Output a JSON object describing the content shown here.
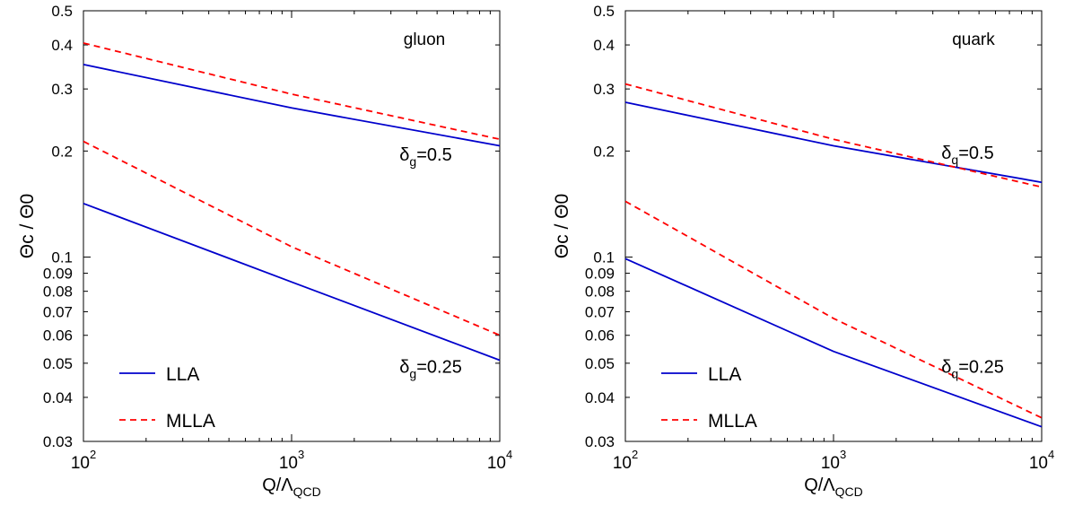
{
  "chart_data": [
    {
      "type": "line",
      "xscale": "log",
      "yscale": "log",
      "xlim": [
        100,
        10000
      ],
      "ylim": [
        0.03,
        0.5
      ],
      "xlabel": "Q/Λ",
      "xlabel_sub": "QCD",
      "ylabel": "Θc / Θ0",
      "xticks": [
        {
          "value": 100,
          "base": "10",
          "exp": "2"
        },
        {
          "value": 1000,
          "base": "10",
          "exp": "3"
        },
        {
          "value": 10000,
          "base": "10",
          "exp": "4"
        }
      ],
      "yticks": [
        0.03,
        0.04,
        0.05,
        0.06,
        0.07,
        0.08,
        0.09,
        0.1,
        0.2,
        0.3,
        0.4,
        0.5
      ],
      "ytick_labels": [
        "0.03",
        "0.04",
        "0.05",
        "0.06",
        "0.07",
        "0.08",
        "0.09",
        "0.1",
        "0.2",
        "0.3",
        "0.4",
        "0.5"
      ],
      "corner_label": "gluon",
      "annotations": [
        {
          "base": "δ",
          "sub": "g",
          "text": "=0.5",
          "x": 3300,
          "y": 0.188
        },
        {
          "base": "δ",
          "sub": "g",
          "text": "=0.25",
          "x": 3300,
          "y": 0.047
        }
      ],
      "legend": {
        "position": "bottom-left",
        "entries": [
          {
            "name": "LLA",
            "color": "#0000cc",
            "dash": "solid"
          },
          {
            "name": "MLLA",
            "color": "#ff0000",
            "dash": "dashed"
          }
        ]
      },
      "series": [
        {
          "color": "#0000cc",
          "dash": "solid",
          "x": [
            100,
            1000,
            10000
          ],
          "y": [
            0.352,
            0.265,
            0.207
          ]
        },
        {
          "color": "#ff0000",
          "dash": "dashed",
          "x": [
            100,
            1000,
            10000
          ],
          "y": [
            0.405,
            0.29,
            0.216
          ]
        },
        {
          "color": "#0000cc",
          "dash": "solid",
          "x": [
            100,
            1000,
            10000
          ],
          "y": [
            0.142,
            0.085,
            0.051
          ]
        },
        {
          "color": "#ff0000",
          "dash": "dashed",
          "x": [
            100,
            1000,
            10000
          ],
          "y": [
            0.213,
            0.107,
            0.06
          ]
        }
      ]
    },
    {
      "type": "line",
      "xscale": "log",
      "yscale": "log",
      "xlim": [
        100,
        10000
      ],
      "ylim": [
        0.03,
        0.5
      ],
      "xlabel": "Q/Λ",
      "xlabel_sub": "QCD",
      "ylabel": "Θc / Θ0",
      "xticks": [
        {
          "value": 100,
          "base": "10",
          "exp": "2"
        },
        {
          "value": 1000,
          "base": "10",
          "exp": "3"
        },
        {
          "value": 10000,
          "base": "10",
          "exp": "4"
        }
      ],
      "yticks": [
        0.03,
        0.04,
        0.05,
        0.06,
        0.07,
        0.08,
        0.09,
        0.1,
        0.2,
        0.3,
        0.4,
        0.5
      ],
      "ytick_labels": [
        "0.03",
        "0.04",
        "0.05",
        "0.06",
        "0.07",
        "0.08",
        "0.09",
        "0.1",
        "0.2",
        "0.3",
        "0.4",
        "0.5"
      ],
      "corner_label": "quark",
      "annotations": [
        {
          "base": "δ",
          "sub": "q",
          "text": "=0.5",
          "x": 3300,
          "y": 0.19
        },
        {
          "base": "δ",
          "sub": "q",
          "text": "=0.25",
          "x": 3300,
          "y": 0.047
        }
      ],
      "legend": {
        "position": "bottom-left",
        "entries": [
          {
            "name": "LLA",
            "color": "#0000cc",
            "dash": "solid"
          },
          {
            "name": "MLLA",
            "color": "#ff0000",
            "dash": "dashed"
          }
        ]
      },
      "series": [
        {
          "color": "#0000cc",
          "dash": "solid",
          "x": [
            100,
            1000,
            10000
          ],
          "y": [
            0.275,
            0.207,
            0.163
          ]
        },
        {
          "color": "#ff0000",
          "dash": "dashed",
          "x": [
            100,
            1000,
            10000
          ],
          "y": [
            0.31,
            0.216,
            0.158
          ]
        },
        {
          "color": "#0000cc",
          "dash": "solid",
          "x": [
            100,
            1000,
            10000
          ],
          "y": [
            0.099,
            0.054,
            0.033
          ]
        },
        {
          "color": "#ff0000",
          "dash": "dashed",
          "x": [
            100,
            1000,
            10000
          ],
          "y": [
            0.144,
            0.067,
            0.035
          ]
        }
      ]
    }
  ]
}
